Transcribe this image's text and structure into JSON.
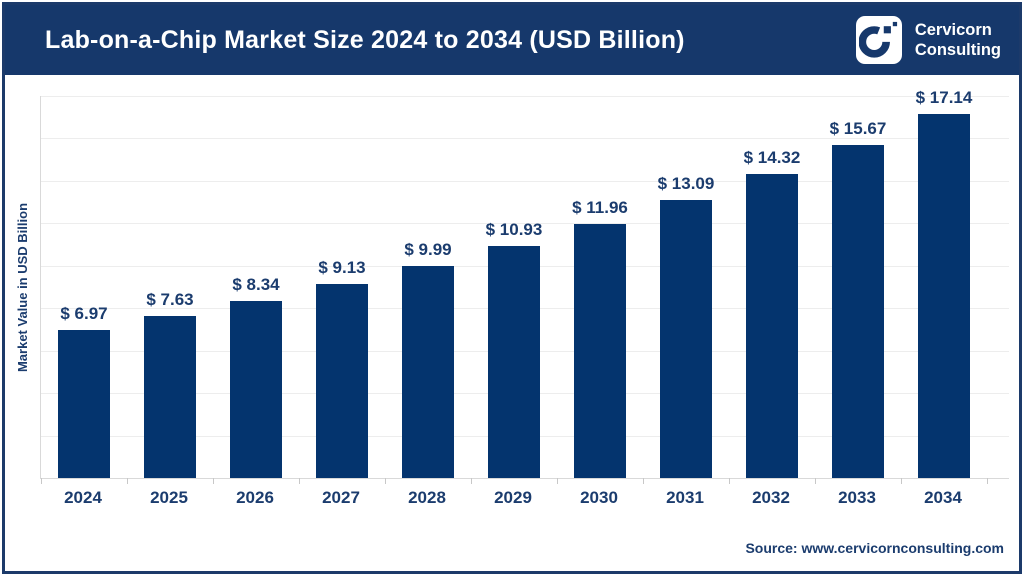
{
  "header": {
    "title": "Lab-on-a-Chip Market Size 2024 to 2034 (USD Billion)",
    "logo": {
      "line1": "Cervicorn",
      "line2": "Consulting"
    }
  },
  "chart_data": {
    "type": "bar",
    "title": "Lab-on-a-Chip Market Size 2024 to 2034 (USD Billion)",
    "categories": [
      "2024",
      "2025",
      "2026",
      "2027",
      "2028",
      "2029",
      "2030",
      "2031",
      "2032",
      "2033",
      "2034"
    ],
    "values": [
      6.97,
      7.63,
      8.34,
      9.13,
      9.99,
      10.93,
      11.96,
      13.09,
      14.32,
      15.67,
      17.14
    ],
    "value_labels": [
      "$ 6.97",
      "$ 7.63",
      "$ 8.34",
      "$ 9.13",
      "$ 9.99",
      "$ 10.93",
      "$ 11.96",
      "$ 13.09",
      "$ 14.32",
      "$ 15.67",
      "$ 17.14"
    ],
    "xlabel": "",
    "ylabel": "Market Value in USD Billion",
    "ylim": [
      0,
      18
    ],
    "grid_step": 2,
    "grid": "horizontal only",
    "legend": "none",
    "colors": {
      "bar": "#04346e",
      "header_band": "#16386b",
      "frame_border": "#1c3a6a",
      "label_text": "#1b3c6e",
      "gridline": "#ededed",
      "axis_line": "#d9d9d9"
    }
  },
  "footer": {
    "source": "Source: www.cervicornconsulting.com"
  }
}
